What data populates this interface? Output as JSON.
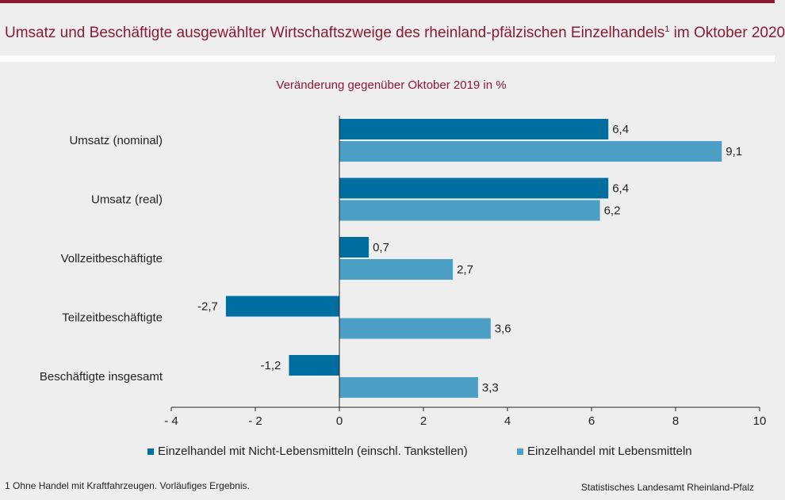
{
  "title": {
    "text": "Umsatz und Beschäftigte ausgewählter Wirtschaftszweige des rheinland-pfälzischen Einzelhandels",
    "footnote_mark": "1",
    "suffix": " im Oktober 2020"
  },
  "subtitle": "Veränderung gegenüber Oktober 2019 in %",
  "footnote": "1 Ohne Handel mit Kraftfahrzeugen. Vorläufiges Ergebnis.",
  "source": "Statistisches Landesamt Rheinland-Pfalz",
  "chart_data": {
    "type": "bar",
    "orientation": "horizontal",
    "categories": [
      "Umsatz (nominal)",
      "Umsatz (real)",
      "Vollzeitbeschäftigte",
      "Teilzeitbeschäftigte",
      "Beschäftigte insgesamt"
    ],
    "series": [
      {
        "name": "Einzelhandel mit Nicht-Lebensmitteln (einschl. Tankstellen)",
        "color": "#006e9e",
        "values": [
          6.4,
          6.4,
          0.7,
          -2.7,
          -1.2
        ],
        "labels": [
          "6,4",
          "6,4",
          "0,7",
          "-2,7",
          "-1,2"
        ]
      },
      {
        "name": "Einzelhandel mit Lebensmitteln",
        "color": "#4b9fc4",
        "values": [
          9.1,
          6.2,
          2.7,
          3.6,
          3.3
        ],
        "labels": [
          "9,1",
          "6,2",
          "2,7",
          "3,6",
          "3,3"
        ]
      }
    ],
    "xlim": [
      -4,
      10
    ],
    "xticks": [
      -4,
      -2,
      0,
      2,
      4,
      6,
      8,
      10
    ],
    "xtick_labels": [
      "- 4",
      "- 2",
      "0",
      "2",
      "4",
      "6",
      "8",
      "10"
    ],
    "grid": false,
    "legend_position": "bottom"
  }
}
